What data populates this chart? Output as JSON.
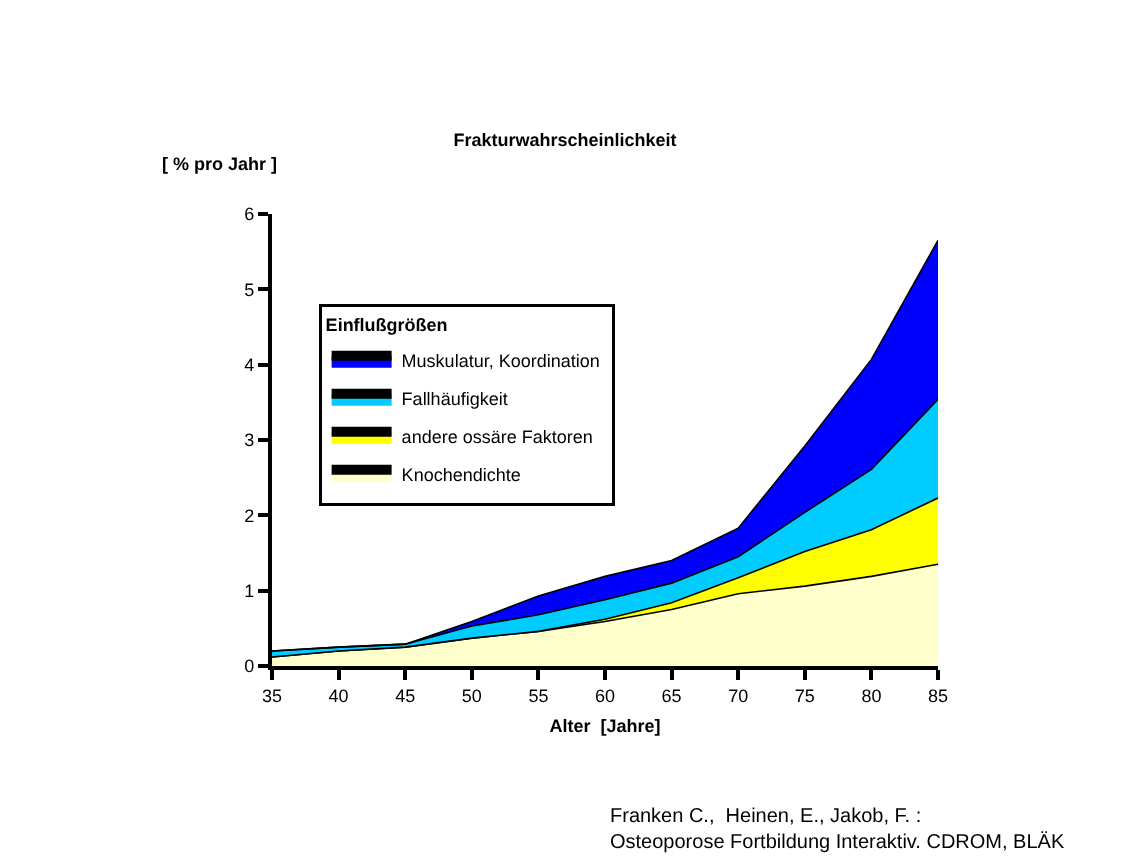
{
  "chart_data": {
    "type": "area",
    "stacked": true,
    "title": "Frakturwahrscheinlichkeit",
    "ylabel": "[ % pro Jahr ]",
    "xlabel": "Alter  [Jahre]",
    "legend_title": "Einflußgrößen",
    "legend": "top left",
    "x": [
      35,
      40,
      45,
      50,
      55,
      60,
      65,
      70,
      75,
      80,
      85
    ],
    "xlim": [
      35,
      85
    ],
    "xticks": [
      35,
      40,
      45,
      50,
      55,
      60,
      65,
      70,
      75,
      80,
      85
    ],
    "ylim": [
      0,
      6
    ],
    "yticks": [
      0,
      1,
      2,
      3,
      4,
      5,
      6
    ],
    "series": [
      {
        "name": "Knochendichte",
        "color": "#ffffcc",
        "values": [
          0.12,
          0.2,
          0.25,
          0.37,
          0.46,
          0.59,
          0.75,
          0.96,
          1.06,
          1.19,
          1.35
        ]
      },
      {
        "name": "andere ossäre Faktoren",
        "color": "#ffff00",
        "values": [
          0,
          0,
          0,
          0,
          0,
          0.03,
          0.09,
          0.21,
          0.46,
          0.62,
          0.88
        ]
      },
      {
        "name": "Fallhäufigkeit",
        "color": "#00ccff",
        "values": [
          0.08,
          0.05,
          0.04,
          0.16,
          0.22,
          0.26,
          0.26,
          0.28,
          0.52,
          0.8,
          1.31
        ]
      },
      {
        "name": "Muskulatur, Koordination",
        "color": "#0000ff",
        "values": [
          0,
          0,
          0,
          0.06,
          0.25,
          0.31,
          0.3,
          0.38,
          0.88,
          1.46,
          2.11
        ]
      }
    ],
    "annotations": [
      "Franken C.,  Heinen, E., Jakob, F. :\nOsteoporose Fortbildung Interaktiv. CDROM, BLÄK"
    ]
  }
}
